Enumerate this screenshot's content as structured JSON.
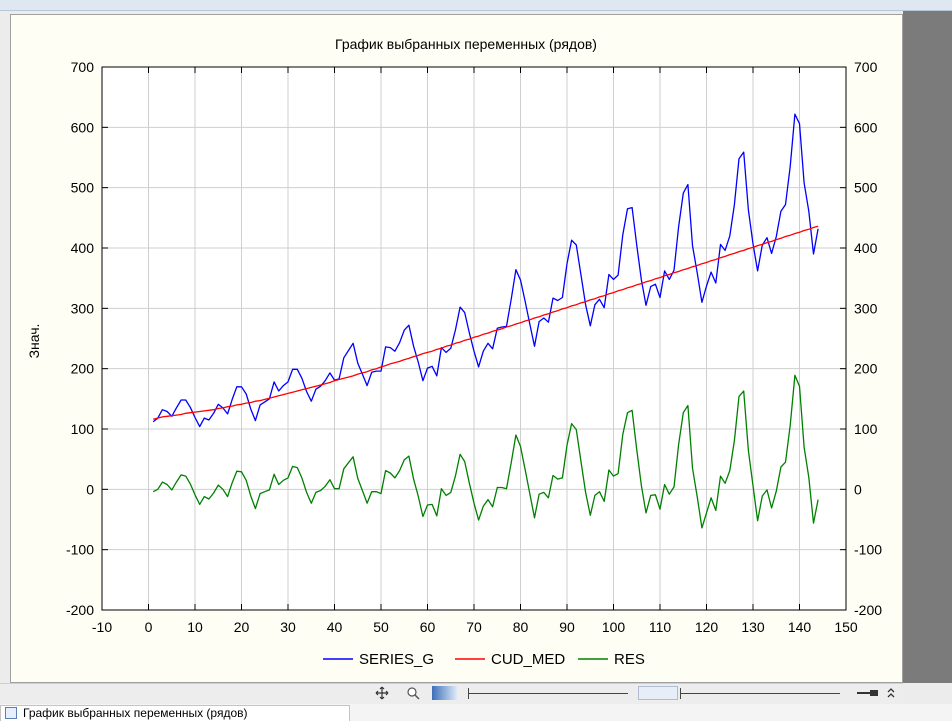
{
  "window": {
    "tab_label": "График выбранных переменных (рядов)"
  },
  "chart_data": {
    "type": "line",
    "title": "График выбранных переменных (рядов)",
    "ylabel": "Знач.",
    "xlabel": "",
    "xlim": [
      -10,
      150
    ],
    "ylim": [
      -200,
      700
    ],
    "x_ticks": [
      -10,
      0,
      10,
      20,
      30,
      40,
      50,
      60,
      70,
      80,
      90,
      100,
      110,
      120,
      130,
      140,
      150
    ],
    "y_ticks": [
      -200,
      -100,
      0,
      100,
      200,
      300,
      400,
      500,
      600,
      700
    ],
    "grid": true,
    "legend_position": "bottom",
    "x": [
      1,
      2,
      3,
      4,
      5,
      6,
      7,
      8,
      9,
      10,
      11,
      12,
      13,
      14,
      15,
      16,
      17,
      18,
      19,
      20,
      21,
      22,
      23,
      24,
      25,
      26,
      27,
      28,
      29,
      30,
      31,
      32,
      33,
      34,
      35,
      36,
      37,
      38,
      39,
      40,
      41,
      42,
      43,
      44,
      45,
      46,
      47,
      48,
      49,
      50,
      51,
      52,
      53,
      54,
      55,
      56,
      57,
      58,
      59,
      60,
      61,
      62,
      63,
      64,
      65,
      66,
      67,
      68,
      69,
      70,
      71,
      72,
      73,
      74,
      75,
      76,
      77,
      78,
      79,
      80,
      81,
      82,
      83,
      84,
      85,
      86,
      87,
      88,
      89,
      90,
      91,
      92,
      93,
      94,
      95,
      96,
      97,
      98,
      99,
      100,
      101,
      102,
      103,
      104,
      105,
      106,
      107,
      108,
      109,
      110,
      111,
      112,
      113,
      114,
      115,
      116,
      117,
      118,
      119,
      120,
      121,
      122,
      123,
      124,
      125,
      126,
      127,
      128,
      129,
      130,
      131,
      132,
      133,
      134,
      135,
      136,
      137,
      138,
      139,
      140,
      141,
      142,
      143,
      144
    ],
    "series": [
      {
        "name": "SERIES_G",
        "color": "#0000ff",
        "values": [
          112,
          118,
          132,
          129,
          121,
          135,
          148,
          148,
          136,
          119,
          104,
          118,
          115,
          126,
          141,
          135,
          125,
          149,
          170,
          170,
          158,
          133,
          114,
          140,
          145,
          150,
          178,
          163,
          172,
          178,
          199,
          199,
          184,
          162,
          146,
          166,
          171,
          180,
          193,
          181,
          183,
          218,
          230,
          242,
          209,
          191,
          172,
          194,
          196,
          196,
          236,
          235,
          229,
          243,
          264,
          272,
          237,
          211,
          180,
          201,
          204,
          188,
          235,
          227,
          234,
          264,
          302,
          293,
          259,
          229,
          203,
          229,
          242,
          233,
          267,
          269,
          270,
          315,
          364,
          347,
          312,
          274,
          237,
          278,
          284,
          277,
          317,
          313,
          318,
          374,
          413,
          405,
          355,
          306,
          271,
          306,
          315,
          301,
          356,
          348,
          355,
          422,
          465,
          467,
          404,
          347,
          305,
          336,
          340,
          318,
          362,
          348,
          363,
          435,
          491,
          505,
          404,
          359,
          310,
          337,
          360,
          342,
          406,
          396,
          420,
          472,
          548,
          559,
          463,
          407,
          362,
          405,
          417,
          391,
          419,
          461,
          472,
          535,
          622,
          606,
          508,
          461,
          390,
          432
        ]
      },
      {
        "name": "CUD_MED",
        "color": "#ff0000",
        "values": [
          116,
          118,
          120,
          121,
          122,
          123,
          124,
          126,
          127,
          128,
          129,
          130,
          131,
          132,
          134,
          135,
          137,
          138,
          140,
          141,
          143,
          144,
          146,
          147,
          149,
          151,
          153,
          155,
          157,
          159,
          161,
          163,
          165,
          167,
          169,
          171,
          173,
          175,
          177,
          180,
          182,
          184,
          186,
          188,
          191,
          193,
          195,
          198,
          200,
          203,
          205,
          208,
          210,
          212,
          215,
          217,
          220,
          222,
          225,
          227,
          229,
          232,
          234,
          237,
          239,
          242,
          244,
          247,
          249,
          252,
          254,
          257,
          259,
          262,
          264,
          266,
          269,
          271,
          274,
          276,
          279,
          281,
          284,
          286,
          289,
          291,
          294,
          296,
          299,
          301,
          304,
          306,
          309,
          311,
          314,
          316,
          319,
          321,
          324,
          326,
          329,
          331,
          334,
          336,
          339,
          341,
          344,
          346,
          349,
          351,
          354,
          356,
          359,
          361,
          364,
          366,
          369,
          371,
          374,
          376,
          379,
          381,
          384,
          386,
          389,
          391,
          394,
          396,
          399,
          401,
          404,
          406,
          409,
          411,
          414,
          416,
          419,
          421,
          424,
          426,
          429,
          431,
          434,
          436
        ]
      },
      {
        "name": "RES",
        "color": "#008000",
        "values": [
          -4,
          0,
          12,
          8,
          -1,
          12,
          24,
          22,
          9,
          -9,
          -25,
          -12,
          -16,
          -6,
          7,
          0,
          -12,
          11,
          30,
          29,
          15,
          -11,
          -32,
          -7,
          -4,
          -1,
          25,
          8,
          15,
          19,
          38,
          36,
          19,
          -5,
          -23,
          -5,
          -2,
          5,
          16,
          1,
          1,
          34,
          44,
          54,
          18,
          -2,
          -23,
          -4,
          -4,
          -7,
          31,
          27,
          19,
          31,
          49,
          55,
          17,
          -11,
          -45,
          -26,
          -25,
          -44,
          1,
          -10,
          -5,
          22,
          58,
          46,
          10,
          -23,
          -51,
          -28,
          -17,
          -29,
          3,
          3,
          1,
          44,
          90,
          71,
          33,
          -7,
          -47,
          -8,
          -5,
          -14,
          23,
          17,
          19,
          73,
          109,
          99,
          46,
          -5,
          -43,
          -10,
          -4,
          -20,
          32,
          22,
          26,
          91,
          127,
          131,
          65,
          6,
          -39,
          -10,
          -9,
          -33,
          8,
          -8,
          4,
          74,
          127,
          139,
          35,
          -12,
          -64,
          -39,
          -14,
          -35,
          22,
          10,
          31,
          81,
          154,
          163,
          64,
          6,
          -52,
          -11,
          -1,
          -31,
          -3,
          37,
          45,
          106,
          189,
          171,
          70,
          20,
          -56,
          -17
        ]
      }
    ]
  }
}
